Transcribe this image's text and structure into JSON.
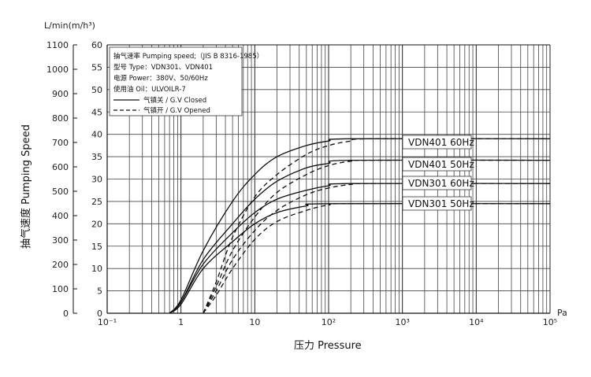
{
  "chart_data": {
    "type": "line",
    "x_axis": {
      "scale": "log",
      "range": [
        0.1,
        100000
      ],
      "unit": "Pa",
      "label": "压力 Pressure",
      "tick_labels": [
        "10⁻¹",
        "1",
        "10",
        "10²",
        "10³",
        "10⁴",
        "10⁵"
      ]
    },
    "y_axis_left": {
      "range": [
        0,
        1100
      ],
      "unit": "L/min(m/h³)",
      "label": "抽气速度 Pumping Speed",
      "ticks": [
        "0",
        "100",
        "200",
        "300",
        "400",
        "500",
        "600",
        "700",
        "800",
        "900",
        "1000",
        "1100"
      ]
    },
    "y_axis_inner": {
      "range": [
        0,
        60
      ],
      "ticks": [
        "5",
        "10",
        "15",
        "20",
        "25",
        "30",
        "35",
        "40",
        "45",
        "50",
        "55",
        "60"
      ]
    },
    "grid": true,
    "legend": {
      "placement": "top-left",
      "lines": [
        "抽气速率 Pumping speed;（JIS B 8316-1985）",
        "型号 Type：VDN301、VDN401",
        "电源 Power：380V、50/60Hz",
        "使用油 Oil：ULVOILR-7"
      ],
      "styles": [
        {
          "style": "solid",
          "label": "气镇关 / G.V Closed"
        },
        {
          "style": "dashed",
          "label": "气镇开 / G.V Opened"
        }
      ]
    },
    "series": [
      {
        "name": "VDN401 60Hz",
        "gv": "closed",
        "points": [
          [
            0.7,
            0
          ],
          [
            1,
            3
          ],
          [
            2,
            14
          ],
          [
            5,
            25
          ],
          [
            10,
            31
          ],
          [
            20,
            35
          ],
          [
            50,
            37.5
          ],
          [
            100,
            38.5
          ],
          [
            200,
            39
          ],
          [
            100000,
            39
          ]
        ]
      },
      {
        "name": "VDN401 60Hz",
        "gv": "opened",
        "points": [
          [
            2,
            0
          ],
          [
            3,
            7
          ],
          [
            5,
            17
          ],
          [
            10,
            26
          ],
          [
            20,
            31
          ],
          [
            50,
            35.5
          ],
          [
            100,
            37.5
          ],
          [
            200,
            38.5
          ],
          [
            400,
            39
          ],
          [
            100000,
            39
          ]
        ]
      },
      {
        "name": "VDN401 50Hz",
        "gv": "closed",
        "points": [
          [
            0.7,
            0
          ],
          [
            1,
            2.5
          ],
          [
            2,
            12
          ],
          [
            5,
            20
          ],
          [
            10,
            25.5
          ],
          [
            20,
            29.5
          ],
          [
            50,
            32.5
          ],
          [
            100,
            33.5
          ],
          [
            200,
            34.2
          ],
          [
            100000,
            34.2
          ]
        ]
      },
      {
        "name": "VDN401 50Hz",
        "gv": "opened",
        "points": [
          [
            2,
            0
          ],
          [
            3,
            6
          ],
          [
            5,
            14
          ],
          [
            10,
            21.5
          ],
          [
            20,
            27
          ],
          [
            50,
            31
          ],
          [
            100,
            33
          ],
          [
            200,
            34
          ],
          [
            400,
            34.2
          ],
          [
            100000,
            34.2
          ]
        ]
      },
      {
        "name": "VDN301 60Hz",
        "gv": "closed",
        "points": [
          [
            0.7,
            0
          ],
          [
            1,
            2.5
          ],
          [
            2,
            11
          ],
          [
            5,
            18
          ],
          [
            10,
            22.5
          ],
          [
            20,
            25.5
          ],
          [
            50,
            27.5
          ],
          [
            100,
            28.5
          ],
          [
            200,
            29
          ],
          [
            100000,
            29
          ]
        ]
      },
      {
        "name": "VDN301 60Hz",
        "gv": "opened",
        "points": [
          [
            2,
            0
          ],
          [
            3,
            5
          ],
          [
            5,
            12
          ],
          [
            10,
            18.5
          ],
          [
            20,
            23
          ],
          [
            50,
            26.5
          ],
          [
            100,
            28
          ],
          [
            200,
            28.8
          ],
          [
            400,
            29
          ],
          [
            100000,
            29
          ]
        ]
      },
      {
        "name": "VDN301 50Hz",
        "gv": "closed",
        "points": [
          [
            0.7,
            0
          ],
          [
            1,
            2
          ],
          [
            2,
            10
          ],
          [
            5,
            16
          ],
          [
            10,
            20
          ],
          [
            20,
            22.5
          ],
          [
            50,
            24
          ],
          [
            100,
            24.5
          ],
          [
            100000,
            24.5
          ]
        ]
      },
      {
        "name": "VDN301 50Hz",
        "gv": "opened",
        "points": [
          [
            2,
            0
          ],
          [
            3,
            4
          ],
          [
            5,
            10
          ],
          [
            10,
            16.5
          ],
          [
            20,
            20.5
          ],
          [
            50,
            23
          ],
          [
            100,
            24.2
          ],
          [
            200,
            24.5
          ],
          [
            100000,
            24.5
          ]
        ]
      }
    ],
    "series_labels": [
      "VDN401  60Hz",
      "VDN401  50Hz",
      "VDN301  60Hz",
      "VDN301  50Hz"
    ]
  }
}
